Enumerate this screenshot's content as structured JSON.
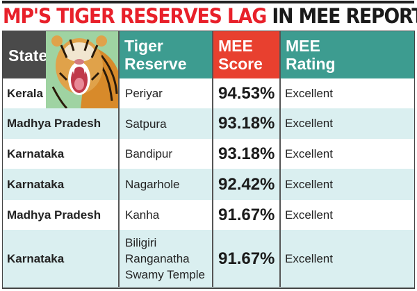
{
  "title": {
    "red_part": "MP'S TIGER RESERVES LAG",
    "black_part": "IN MEE REPORT"
  },
  "colors": {
    "state_header": "#4a4a4a",
    "reserve_header": "#3d9c90",
    "score_header": "#e8402f",
    "rating_header": "#3d9c90",
    "alt_row": "#daeff0",
    "title_red": "#e8202a"
  },
  "image": {
    "icon": "roaring-tiger-photo"
  },
  "chart_data": {
    "type": "table",
    "columns": [
      "State",
      "Tiger Reserve",
      "MEE Score",
      "MEE Rating"
    ],
    "header_lines": {
      "reserve": [
        "Tiger",
        "Reserve"
      ],
      "score": [
        "MEE",
        "Score"
      ],
      "rating": [
        "MEE",
        "Rating"
      ]
    },
    "rows": [
      {
        "state": "Kerala",
        "reserve": "Periyar",
        "score": "94.53%",
        "rating": "Excellent"
      },
      {
        "state": "Madhya Pradesh",
        "reserve": "Satpura",
        "score": "93.18%",
        "rating": "Excellent"
      },
      {
        "state": "Karnataka",
        "reserve": "Bandipur",
        "score": "93.18%",
        "rating": "Excellent"
      },
      {
        "state": "Karnataka",
        "reserve": "Nagarhole",
        "score": "92.42%",
        "rating": "Excellent"
      },
      {
        "state": "Madhya Pradesh",
        "reserve": "Kanha",
        "score": "91.67%",
        "rating": "Excellent"
      },
      {
        "state": "Karnataka",
        "reserve": "Biligiri Ranganatha Swamy Temple",
        "score": "91.67%",
        "rating": "Excellent"
      }
    ]
  }
}
